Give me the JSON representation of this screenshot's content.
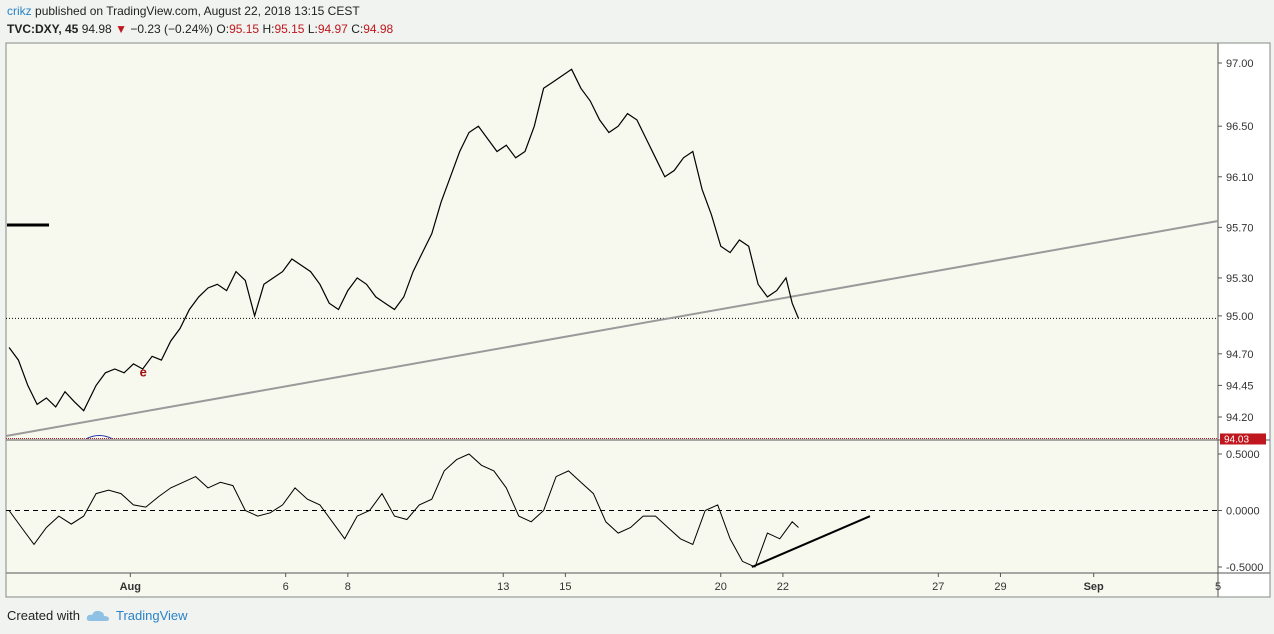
{
  "header": {
    "author": "crikz",
    "published": "published on TradingView.com, August 22, 2018 13:15 CEST",
    "symbol": "TVC:DXY, 45",
    "last": "94.98",
    "change": "−0.23 (−0.24%)",
    "o_label": "O:",
    "o": "95.15",
    "h_label": "H:",
    "h": "95.15",
    "l_label": "L:",
    "l": "94.97",
    "c_label": "C:",
    "c": "94.98"
  },
  "footer": {
    "created_with": "Created with",
    "brand": "TradingView"
  },
  "colors": {
    "background": "#f7f9ee",
    "price": "#000000",
    "trendline": "#9a9a9a",
    "support": "#c0161e",
    "accent": "#2a83c8"
  },
  "chart_data": [
    {
      "type": "line",
      "name": "price",
      "ylim": [
        94.03,
        97.12
      ],
      "yticks": [
        "97.00",
        "96.50",
        "96.10",
        "95.70",
        "95.30",
        "95.00",
        "94.70",
        "94.45",
        "94.20"
      ],
      "ytick_values": [
        97.0,
        96.5,
        96.1,
        95.7,
        95.3,
        95.0,
        94.7,
        94.45,
        94.2
      ],
      "xticks": [
        "Aug",
        "6",
        "8",
        "13",
        "15",
        "20",
        "22",
        "27",
        "29",
        "Sep",
        "5"
      ],
      "xtick_days": [
        1,
        6,
        8,
        13,
        15,
        20,
        22,
        27,
        29,
        32,
        36
      ],
      "x_range_days": [
        -3.0,
        36.0
      ],
      "x": [
        -2.9,
        -2.6,
        -2.3,
        -2.0,
        -1.7,
        -1.4,
        -1.1,
        -0.8,
        -0.5,
        -0.1,
        0.2,
        0.5,
        0.8,
        1.1,
        1.4,
        1.7,
        2.0,
        2.3,
        2.6,
        2.9,
        3.2,
        3.5,
        3.8,
        4.1,
        4.4,
        4.7,
        5.0,
        5.3,
        5.6,
        5.9,
        6.2,
        6.5,
        6.8,
        7.1,
        7.4,
        7.7,
        8.0,
        8.3,
        8.6,
        8.9,
        9.2,
        9.5,
        9.8,
        10.1,
        10.4,
        10.7,
        11.0,
        11.3,
        11.6,
        11.9,
        12.2,
        12.5,
        12.8,
        13.1,
        13.4,
        13.7,
        14.0,
        14.3,
        14.6,
        14.9,
        15.2,
        15.5,
        15.8,
        16.1,
        16.4,
        16.7,
        17.0,
        17.3,
        17.6,
        17.9,
        18.2,
        18.5,
        18.8,
        19.1,
        19.4,
        19.7,
        20.0,
        20.3,
        20.6,
        20.9,
        21.2,
        21.5,
        21.8,
        22.1,
        22.3,
        22.5
      ],
      "y": [
        94.75,
        94.65,
        94.45,
        94.3,
        94.35,
        94.28,
        94.4,
        94.32,
        94.25,
        94.45,
        94.55,
        94.58,
        94.55,
        94.62,
        94.58,
        94.68,
        94.65,
        94.8,
        94.9,
        95.05,
        95.15,
        95.22,
        95.25,
        95.2,
        95.35,
        95.28,
        95.0,
        95.25,
        95.3,
        95.35,
        95.45,
        95.4,
        95.35,
        95.25,
        95.1,
        95.05,
        95.2,
        95.3,
        95.25,
        95.15,
        95.1,
        95.05,
        95.15,
        95.35,
        95.5,
        95.65,
        95.9,
        96.1,
        96.3,
        96.45,
        96.5,
        96.4,
        96.3,
        96.35,
        96.25,
        96.3,
        96.5,
        96.8,
        96.85,
        96.9,
        96.95,
        96.8,
        96.7,
        96.55,
        96.45,
        96.5,
        96.6,
        96.55,
        96.4,
        96.25,
        96.1,
        96.15,
        96.25,
        96.3,
        96.0,
        95.8,
        95.55,
        95.5,
        95.6,
        95.55,
        95.25,
        95.15,
        95.2,
        95.3,
        95.1,
        94.98
      ],
      "trendline": {
        "x": [
          -3.0,
          36.0
        ],
        "y": [
          94.05,
          95.75
        ]
      },
      "hline_last": 94.98,
      "hline_support": 94.03,
      "support_label": "94.03",
      "annotation": "e"
    },
    {
      "type": "line",
      "name": "oscillator",
      "ylim": [
        -0.5,
        0.55
      ],
      "yticks": [
        "0.5000",
        "0.0000",
        "-0.5000"
      ],
      "ytick_values": [
        0.5,
        0.0,
        -0.5
      ],
      "zero_line": 0.0,
      "x": [
        -2.9,
        -2.5,
        -2.1,
        -1.7,
        -1.3,
        -0.9,
        -0.5,
        -0.1,
        0.3,
        0.7,
        1.1,
        1.5,
        1.9,
        2.3,
        2.7,
        3.1,
        3.5,
        3.9,
        4.3,
        4.7,
        5.1,
        5.5,
        5.9,
        6.3,
        6.7,
        7.1,
        7.5,
        7.9,
        8.3,
        8.7,
        9.1,
        9.5,
        9.9,
        10.3,
        10.7,
        11.1,
        11.5,
        11.9,
        12.3,
        12.7,
        13.1,
        13.5,
        13.9,
        14.3,
        14.7,
        15.1,
        15.5,
        15.9,
        16.3,
        16.7,
        17.1,
        17.5,
        17.9,
        18.3,
        18.7,
        19.1,
        19.5,
        19.9,
        20.3,
        20.7,
        21.1,
        21.5,
        21.9,
        22.3,
        22.5
      ],
      "y": [
        0.0,
        -0.15,
        -0.3,
        -0.15,
        -0.05,
        -0.12,
        -0.05,
        0.15,
        0.18,
        0.15,
        0.05,
        0.03,
        0.12,
        0.2,
        0.25,
        0.3,
        0.2,
        0.25,
        0.22,
        0.0,
        -0.05,
        -0.02,
        0.05,
        0.2,
        0.1,
        0.05,
        -0.1,
        -0.25,
        -0.05,
        0.0,
        0.15,
        -0.05,
        -0.08,
        0.05,
        0.1,
        0.35,
        0.45,
        0.5,
        0.4,
        0.35,
        0.2,
        -0.05,
        -0.1,
        0.0,
        0.3,
        0.35,
        0.25,
        0.15,
        -0.1,
        -0.2,
        -0.15,
        -0.05,
        -0.05,
        -0.15,
        -0.25,
        -0.3,
        0.0,
        0.05,
        -0.25,
        -0.45,
        -0.5,
        -0.2,
        -0.25,
        -0.1,
        -0.15
      ],
      "divergence_line": {
        "x": [
          21.0,
          24.8
        ],
        "y": [
          -0.5,
          -0.05
        ]
      }
    }
  ]
}
